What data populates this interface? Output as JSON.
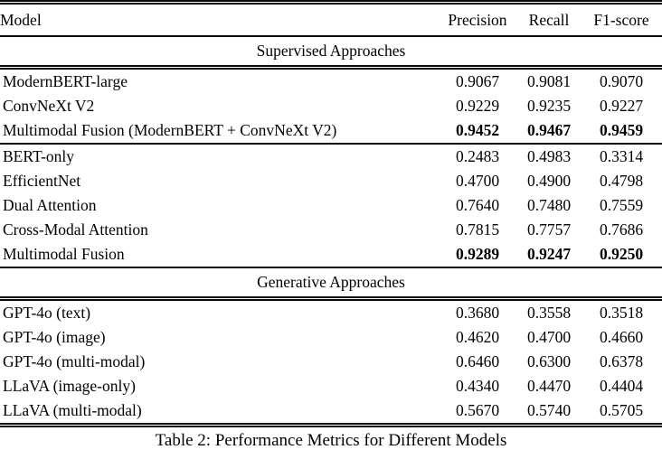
{
  "table": {
    "caption": "Table 2: Performance Metrics for Different Models",
    "columns": {
      "model": "Model",
      "precision": "Precision",
      "recall": "Recall",
      "f1": "F1-score"
    },
    "sections": [
      {
        "label": "Supervised Approaches"
      },
      {
        "label": "Generative Approaches"
      }
    ],
    "rows": [
      {
        "model": "ModernBERT-large",
        "precision": "0.9067",
        "recall": "0.9081",
        "f1": "0.9070",
        "bold": false
      },
      {
        "model": "ConvNeXt V2",
        "precision": "0.9229",
        "recall": "0.9235",
        "f1": "0.9227",
        "bold": false
      },
      {
        "model": "Multimodal Fusion (ModernBERT + ConvNeXt V2)",
        "precision": "0.9452",
        "recall": "0.9467",
        "f1": "0.9459",
        "bold": true
      },
      {
        "model": "BERT-only",
        "precision": "0.2483",
        "recall": "0.4983",
        "f1": "0.3314",
        "bold": false
      },
      {
        "model": "EfficientNet",
        "precision": "0.4700",
        "recall": "0.4900",
        "f1": "0.4798",
        "bold": false
      },
      {
        "model": "Dual Attention",
        "precision": "0.7640",
        "recall": "0.7480",
        "f1": "0.7559",
        "bold": false
      },
      {
        "model": "Cross-Modal Attention",
        "precision": "0.7815",
        "recall": "0.7757",
        "f1": "0.7686",
        "bold": false
      },
      {
        "model": "Multimodal Fusion",
        "precision": "0.9289",
        "recall": "0.9247",
        "f1": "0.9250",
        "bold": true
      },
      {
        "model": "GPT-4o (text)",
        "precision": "0.3680",
        "recall": "0.3558",
        "f1": "0.3518",
        "bold": false
      },
      {
        "model": "GPT-4o (image)",
        "precision": "0.4620",
        "recall": "0.4700",
        "f1": "0.4660",
        "bold": false
      },
      {
        "model": "GPT-4o (multi-modal)",
        "precision": "0.6460",
        "recall": "0.6300",
        "f1": "0.6378",
        "bold": false
      },
      {
        "model": "LLaVA (image-only)",
        "precision": "0.4340",
        "recall": "0.4470",
        "f1": "0.4404",
        "bold": false
      },
      {
        "model": "LLaVA (multi-modal)",
        "precision": "0.5670",
        "recall": "0.5740",
        "f1": "0.5705",
        "bold": false
      }
    ]
  }
}
